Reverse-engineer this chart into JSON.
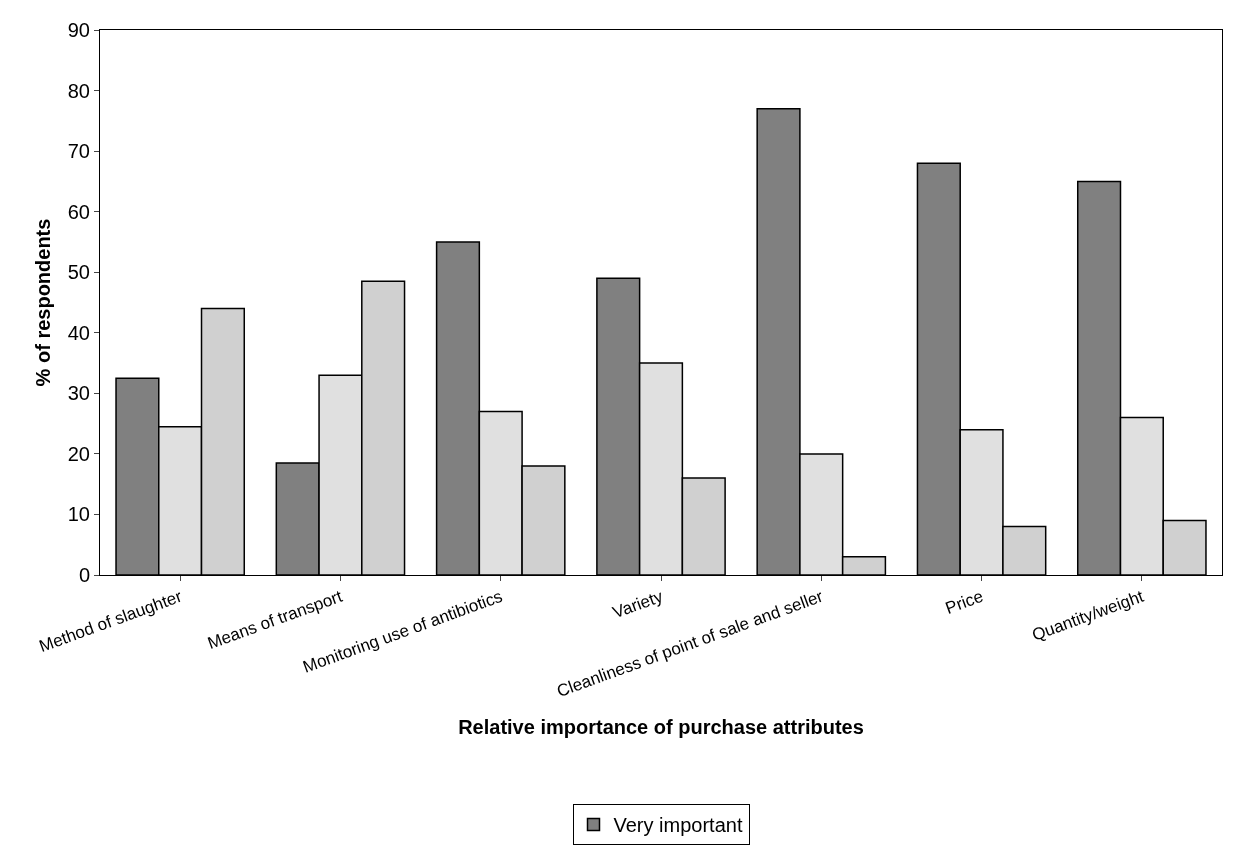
{
  "chart_data": {
    "type": "bar",
    "xlabel": "Relative importance of purchase attributes",
    "ylabel": "% of respondents",
    "categories": [
      "Method of slaughter",
      "Means of transport",
      "Monitoring use of antibiotics",
      "Variety",
      "Cleanliness of point of sale and seller",
      "Price",
      "Quantity/weight"
    ],
    "series": [
      {
        "name": "Very important",
        "color": "#808080",
        "values": [
          32.5,
          18.5,
          55,
          49,
          77,
          68,
          65
        ]
      },
      {
        "color": "#e0e0e0",
        "values": [
          24.5,
          33,
          27,
          35,
          20,
          24,
          26
        ]
      },
      {
        "color": "#d0d0d0",
        "values": [
          44,
          48.5,
          18,
          16,
          3,
          8,
          9
        ]
      }
    ],
    "ylim": [
      0,
      90
    ],
    "yticks": [
      0,
      10,
      20,
      30,
      40,
      50,
      60,
      70,
      80,
      90
    ],
    "grid": false,
    "legend": "bottom"
  }
}
